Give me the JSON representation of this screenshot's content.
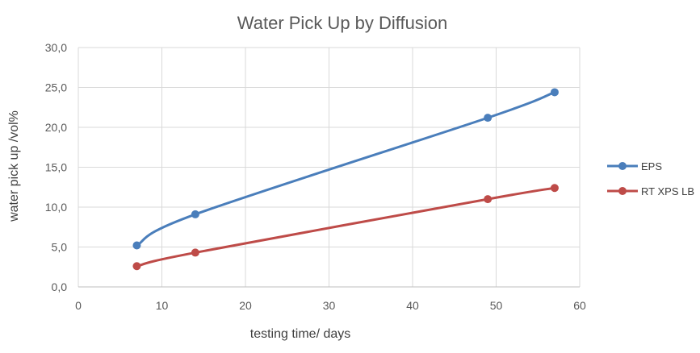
{
  "chart_data": {
    "type": "line",
    "title": "Water Pick Up by Diffusion",
    "xlabel": "testing time/ days",
    "ylabel": "water pick up /vol%",
    "xlim": [
      0,
      60
    ],
    "ylim": [
      0,
      30
    ],
    "x_ticks": [
      "0",
      "10",
      "20",
      "30",
      "40",
      "50",
      "60"
    ],
    "y_ticks": [
      "0,0",
      "5,0",
      "10,0",
      "15,0",
      "20,0",
      "25,0",
      "30,0"
    ],
    "grid": true,
    "legend_position": "right",
    "series": [
      {
        "name": "EPS",
        "color": "#4a7ebb",
        "x": [
          7,
          14,
          49,
          57
        ],
        "y": [
          5.2,
          9.1,
          21.2,
          24.4
        ]
      },
      {
        "name": "RT XPS LB",
        "color": "#be4b48",
        "x": [
          7,
          14,
          49,
          57
        ],
        "y": [
          2.6,
          4.3,
          11.0,
          12.4
        ]
      }
    ]
  }
}
